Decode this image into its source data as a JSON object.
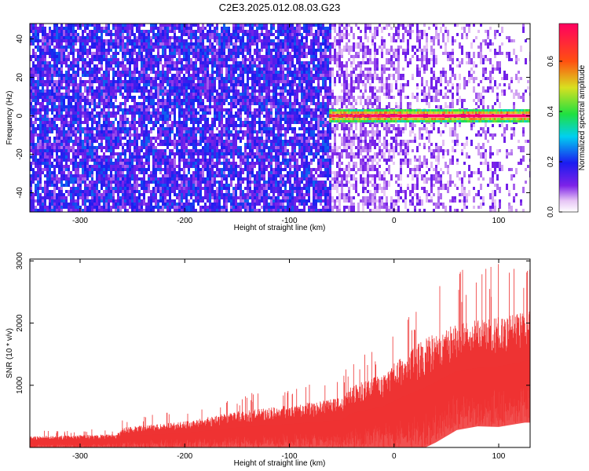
{
  "title": "C2E3.2025.012.08.03.G23",
  "chart_data": [
    {
      "type": "heatmap",
      "xlabel": "Height of straight line (km)",
      "ylabel": "Frequency (Hz)",
      "xlim": [
        -348,
        130
      ],
      "ylim": [
        -50,
        48
      ],
      "xticks": [
        -300,
        -200,
        -100,
        0,
        100
      ],
      "yticks": [
        -40,
        -20,
        0,
        20,
        40
      ],
      "colorbar": {
        "label": "Normalized spectral amplitude",
        "range": [
          0.0,
          0.75
        ],
        "ticks": [
          "0.0",
          "0.2",
          "0.4",
          "0.6"
        ],
        "colormap": "rainbow (white-violet-blue-cyan-green-yellow-red)"
      },
      "features": {
        "dense_noise_region_x": [
          -348,
          -60
        ],
        "faded_noise_region_x": [
          -60,
          130
        ],
        "signal_band_frequency_hz": 0,
        "signal_band_x": [
          -62,
          130
        ],
        "signal_peak_amplitude": 0.72
      }
    },
    {
      "type": "area",
      "xlabel": "Height of straight line (km)",
      "ylabel": "SNR (10 * v/v)",
      "xlim": [
        -348,
        130
      ],
      "ylim": [
        0,
        3030
      ],
      "xticks": [
        -300,
        -200,
        -100,
        0,
        100
      ],
      "yticks": [
        1000,
        2000,
        3000
      ],
      "series": [
        {
          "color": "#ee3333",
          "envelope_x": [
            -348,
            -300,
            -265,
            -260,
            -200,
            -150,
            -100,
            -50,
            -40,
            -10,
            10,
            30,
            40,
            60,
            80,
            100,
            118,
            125,
            130
          ],
          "envelope_lower": [
            0,
            0,
            0,
            0,
            0,
            0,
            0,
            0,
            0,
            0,
            0,
            0,
            80,
            280,
            340,
            330,
            380,
            400,
            400
          ],
          "envelope_upper": [
            180,
            200,
            210,
            320,
            420,
            580,
            680,
            800,
            1000,
            1200,
            1500,
            1750,
            1850,
            2000,
            2050,
            2100,
            2150,
            2200,
            2200
          ],
          "spike_max": 2950
        }
      ]
    }
  ]
}
